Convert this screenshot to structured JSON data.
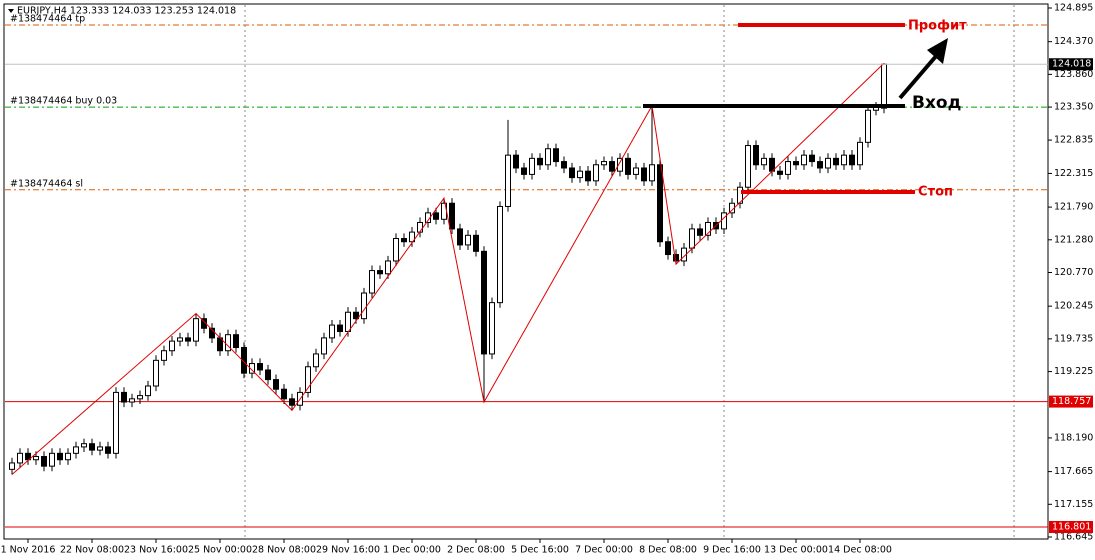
{
  "chart_data": {
    "type": "candlestick",
    "title": "EURJPY,H4 123.333 124.033 123.253 124.018",
    "categories": [
      null,
      null,
      "1 Nov 2016",
      null,
      null,
      null,
      null,
      null,
      null,
      null,
      "22 Nov 08:00",
      null,
      null,
      null,
      null,
      null,
      null,
      null,
      "23 Nov 16:00",
      null,
      null,
      null,
      null,
      null,
      null,
      null,
      "25 Nov 00:00",
      null,
      null,
      null,
      null,
      null,
      null,
      null,
      "28 Nov 08:00",
      null,
      null,
      null,
      null,
      null,
      null,
      null,
      "29 Nov 16:00",
      null,
      null,
      null,
      null,
      null,
      null,
      null,
      "1 Dec 00:00",
      null,
      null,
      null,
      null,
      null,
      null,
      null,
      "2 Dec 08:00",
      null,
      null,
      null,
      null,
      null,
      null,
      null,
      "5 Dec 16:00",
      null,
      null,
      null,
      null,
      null,
      null,
      null,
      "7 Dec 00:00",
      null,
      null,
      null,
      null,
      null,
      null,
      null,
      "8 Dec 08:00",
      null,
      null,
      null,
      null,
      null,
      null,
      null,
      "9 Dec 16:00",
      null,
      null,
      null,
      null,
      null,
      null,
      null,
      "13 Dec 00:00",
      null,
      null,
      null,
      null,
      null,
      null,
      null,
      "14 Dec 08:00",
      null,
      null,
      null
    ],
    "open": [
      117.7,
      117.8,
      117.95,
      117.85,
      117.9,
      117.75,
      117.95,
      117.85,
      117.95,
      118.05,
      118.1,
      118.0,
      118.05,
      117.95,
      118.9,
      118.75,
      118.8,
      118.85,
      119.0,
      119.4,
      119.55,
      119.7,
      119.75,
      119.7,
      120.05,
      119.9,
      119.75,
      119.55,
      119.8,
      119.6,
      119.2,
      119.35,
      119.25,
      119.1,
      118.95,
      118.8,
      118.7,
      118.9,
      119.3,
      119.5,
      119.75,
      119.95,
      119.85,
      120.15,
      120.05,
      120.45,
      120.8,
      120.75,
      120.95,
      121.3,
      121.25,
      121.4,
      121.55,
      121.7,
      121.6,
      121.85,
      121.45,
      121.2,
      121.35,
      121.1,
      119.5,
      120.3,
      121.8,
      122.6,
      122.4,
      122.3,
      122.55,
      122.45,
      122.7,
      122.5,
      122.4,
      122.25,
      122.35,
      122.2,
      122.45,
      122.5,
      122.35,
      122.55,
      122.3,
      122.4,
      122.2,
      122.45,
      121.25,
      121.05,
      120.95,
      121.15,
      121.45,
      121.35,
      121.55,
      121.45,
      121.7,
      121.85,
      122.1,
      122.75,
      122.45,
      122.55,
      122.35,
      122.3,
      122.5,
      122.45,
      122.6,
      122.5,
      122.4,
      122.55,
      122.45,
      122.6,
      122.45,
      122.8,
      123.3,
      123.333
    ],
    "high": [
      117.88,
      118.03,
      118.03,
      117.98,
      117.98,
      118.03,
      118.03,
      118.03,
      118.13,
      118.18,
      118.18,
      118.13,
      118.13,
      118.98,
      118.98,
      118.88,
      118.93,
      119.08,
      119.48,
      119.63,
      119.78,
      119.83,
      119.83,
      120.13,
      120.13,
      119.98,
      119.83,
      119.88,
      119.88,
      119.68,
      119.43,
      119.43,
      119.33,
      119.18,
      119.03,
      118.88,
      118.98,
      119.38,
      119.58,
      119.83,
      120.03,
      120.03,
      120.23,
      120.23,
      120.53,
      120.88,
      120.88,
      121.03,
      121.38,
      121.38,
      121.48,
      121.63,
      121.78,
      121.78,
      121.93,
      121.93,
      121.53,
      121.43,
      121.43,
      121.18,
      120.38,
      121.88,
      123.15,
      122.68,
      122.48,
      122.63,
      122.63,
      122.78,
      122.78,
      122.58,
      122.48,
      122.43,
      122.43,
      122.53,
      122.58,
      122.58,
      122.63,
      122.63,
      122.48,
      122.48,
      123.37,
      122.53,
      121.33,
      121.13,
      121.23,
      121.53,
      121.53,
      121.63,
      121.63,
      121.78,
      121.93,
      122.18,
      122.83,
      122.83,
      122.63,
      122.63,
      122.43,
      122.58,
      122.58,
      122.68,
      122.68,
      122.58,
      122.63,
      122.63,
      122.68,
      122.68,
      122.88,
      123.38,
      123.43,
      124.033
    ],
    "low": [
      117.62,
      117.72,
      117.77,
      117.77,
      117.67,
      117.67,
      117.77,
      117.77,
      117.87,
      117.97,
      117.92,
      117.92,
      117.87,
      117.87,
      118.67,
      118.67,
      118.72,
      118.77,
      118.92,
      119.32,
      119.47,
      119.62,
      119.62,
      119.62,
      119.82,
      119.67,
      119.47,
      119.47,
      119.52,
      119.12,
      119.12,
      119.17,
      119.02,
      118.87,
      118.72,
      118.62,
      118.62,
      118.82,
      119.22,
      119.42,
      119.67,
      119.77,
      119.77,
      119.97,
      119.97,
      120.37,
      120.67,
      120.67,
      120.87,
      121.17,
      121.17,
      121.32,
      121.47,
      121.52,
      121.52,
      121.37,
      121.12,
      121.12,
      121.02,
      118.75,
      119.42,
      120.22,
      121.72,
      122.32,
      122.22,
      122.22,
      122.37,
      122.37,
      122.42,
      122.32,
      122.17,
      122.17,
      122.12,
      122.12,
      122.37,
      122.27,
      122.27,
      122.22,
      122.22,
      122.12,
      122.12,
      121.17,
      120.97,
      120.9,
      120.87,
      121.07,
      121.27,
      121.27,
      121.37,
      121.37,
      121.62,
      121.77,
      122.02,
      122.37,
      122.37,
      122.27,
      122.22,
      122.22,
      122.37,
      122.37,
      122.42,
      122.32,
      122.32,
      122.37,
      122.37,
      122.37,
      122.37,
      122.72,
      123.22,
      123.253
    ],
    "close": [
      117.8,
      117.95,
      117.85,
      117.9,
      117.75,
      117.95,
      117.85,
      117.95,
      118.05,
      118.1,
      118.0,
      118.05,
      117.95,
      118.9,
      118.75,
      118.8,
      118.85,
      119.0,
      119.4,
      119.55,
      119.7,
      119.75,
      119.7,
      120.05,
      119.9,
      119.75,
      119.55,
      119.8,
      119.6,
      119.2,
      119.35,
      119.25,
      119.1,
      118.95,
      118.8,
      118.7,
      118.9,
      119.3,
      119.5,
      119.75,
      119.95,
      119.85,
      120.15,
      120.05,
      120.45,
      120.8,
      120.75,
      120.95,
      121.3,
      121.25,
      121.4,
      121.55,
      121.7,
      121.6,
      121.85,
      121.45,
      121.2,
      121.35,
      121.1,
      119.5,
      120.3,
      121.8,
      122.6,
      122.4,
      122.3,
      122.55,
      122.45,
      122.7,
      122.5,
      122.4,
      122.25,
      122.35,
      122.2,
      122.45,
      122.5,
      122.35,
      122.55,
      122.3,
      122.4,
      122.2,
      122.45,
      121.25,
      121.05,
      120.95,
      121.15,
      121.45,
      121.35,
      121.55,
      121.45,
      121.7,
      121.85,
      122.1,
      122.75,
      122.45,
      122.55,
      122.35,
      122.3,
      122.5,
      122.45,
      122.6,
      122.5,
      122.4,
      122.55,
      122.45,
      122.6,
      122.45,
      122.8,
      123.3,
      123.35,
      124.018
    ],
    "ylim": [
      116.645,
      124.895
    ],
    "yticks": [
      124.895,
      {
        "value": 124.37,
        "label": "124.370"
      },
      {
        "value": 123.86,
        "label": "123.860"
      },
      {
        "value": 123.35,
        "label": "123.350"
      },
      122.835,
      122.315,
      {
        "value": 121.79,
        "label": "121.790"
      },
      {
        "value": 121.28,
        "label": "121.280"
      },
      {
        "value": 120.77,
        "label": "120.770"
      },
      120.245,
      119.735,
      119.225,
      {
        "value": 118.19,
        "label": "118.190"
      },
      117.665,
      117.155,
      116.645
    ],
    "grid": false,
    "zigzag": {
      "color": "#e00000",
      "x": [
        0,
        23,
        35,
        54,
        59,
        80,
        83,
        109
      ],
      "values": [
        117.62,
        120.13,
        118.62,
        121.93,
        118.75,
        123.37,
        120.9,
        124.033
      ]
    },
    "price_line": {
      "value": 124.018,
      "color": "#000000"
    },
    "levels": [
      {
        "value": 118.757,
        "color": "#e00000"
      },
      {
        "value": 116.801,
        "color": "#e00000"
      }
    ],
    "orders": [
      {
        "label": "#138474464 tp",
        "value": 124.63,
        "color": "#e05a00"
      },
      {
        "label": "#138474464 buy 0.03",
        "value": 123.35,
        "color": "#00a000"
      },
      {
        "label": "#138474464 sl",
        "value": 122.06,
        "color": "#e05a00"
      }
    ],
    "annotations": {
      "profit": "Профит",
      "entry": "Вход",
      "stop": "Стоп"
    }
  }
}
